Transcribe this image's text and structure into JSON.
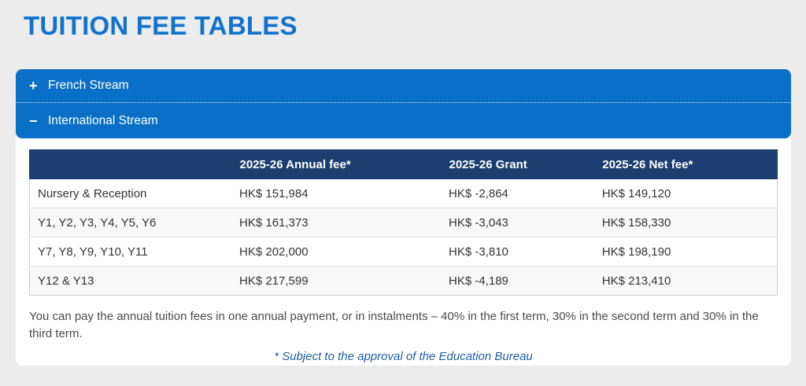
{
  "page": {
    "title": "TUITION FEE TABLES"
  },
  "colors": {
    "accent_blue": "#0a70c7",
    "title_blue": "#1173ce",
    "table_header_navy": "#1c3e70",
    "note_blue": "#1d5d9f",
    "page_background": "#ececec"
  },
  "accordion": {
    "items": [
      {
        "label": "French Stream",
        "state": "collapsed",
        "icon": "plus-icon",
        "icon_glyph": "+"
      },
      {
        "label": "International Stream",
        "state": "expanded",
        "icon": "minus-icon",
        "icon_glyph": "−"
      }
    ]
  },
  "table": {
    "columns": [
      "",
      "2025-26 Annual fee*",
      "2025-26 Grant",
      "2025-26 Net fee*"
    ],
    "rows": [
      {
        "label": "Nursery & Reception",
        "annual_fee": "HK$ 151,984",
        "grant": "HK$ -2,864",
        "net_fee": "HK$ 149,120"
      },
      {
        "label": "Y1, Y2, Y3, Y4, Y5, Y6",
        "annual_fee": "HK$ 161,373",
        "grant": "HK$ -3,043",
        "net_fee": "HK$ 158,330"
      },
      {
        "label": "Y7, Y8, Y9, Y10, Y11",
        "annual_fee": "HK$ 202,000",
        "grant": "HK$ -3,810",
        "net_fee": "HK$ 198,190"
      },
      {
        "label": "Y12 & Y13",
        "annual_fee": "HK$ 217,599",
        "grant": "HK$ -4,189",
        "net_fee": "HK$ 213,410"
      }
    ]
  },
  "notes": {
    "payment_info": "You can pay the annual tuition fees in one annual payment, or in instalments – 40% in the first term, 30% in the second term and 30% in the third term.",
    "approval_note": "* Subject to the approval of the Education Bureau"
  }
}
